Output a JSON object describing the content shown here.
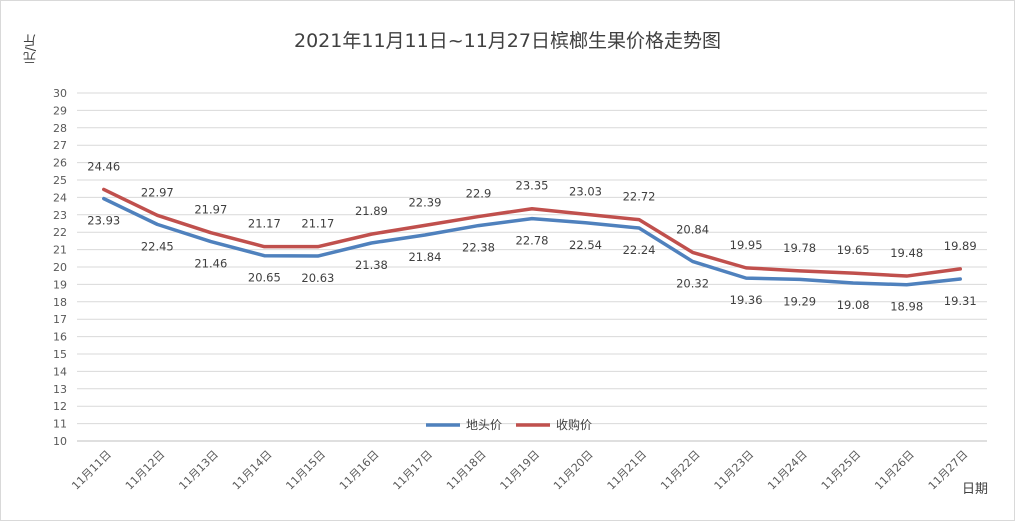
{
  "chart_data": {
    "type": "line",
    "title": "2021年11月11日~11月27日槟榔生果价格走势图",
    "xlabel": "日期",
    "ylabel": "元/斤",
    "ylim": [
      10,
      30
    ],
    "yticks": [
      10,
      11,
      12,
      13,
      14,
      15,
      16,
      17,
      18,
      19,
      20,
      21,
      22,
      23,
      24,
      25,
      26,
      27,
      28,
      29,
      30
    ],
    "categories": [
      "11月11日",
      "11月12日",
      "11月13日",
      "11月14日",
      "11月15日",
      "11月16日",
      "11月17日",
      "11月18日",
      "11月19日",
      "11月20日",
      "11月21日",
      "11月22日",
      "11月23日",
      "11月24日",
      "11月25日",
      "11月26日",
      "11月27日"
    ],
    "series": [
      {
        "name": "地头价",
        "color": "#4f81bd",
        "values": [
          23.93,
          22.45,
          21.46,
          20.65,
          20.63,
          21.38,
          21.84,
          22.38,
          22.78,
          22.54,
          22.24,
          20.32,
          19.36,
          19.29,
          19.08,
          18.98,
          19.31
        ]
      },
      {
        "name": "收购价",
        "color": "#c0504d",
        "values": [
          24.46,
          22.97,
          21.97,
          21.17,
          21.17,
          21.89,
          22.39,
          22.9,
          23.35,
          23.03,
          22.72,
          20.84,
          19.95,
          19.78,
          19.65,
          19.48,
          19.89
        ]
      }
    ],
    "grid": true,
    "legend_position": "bottom-center"
  }
}
